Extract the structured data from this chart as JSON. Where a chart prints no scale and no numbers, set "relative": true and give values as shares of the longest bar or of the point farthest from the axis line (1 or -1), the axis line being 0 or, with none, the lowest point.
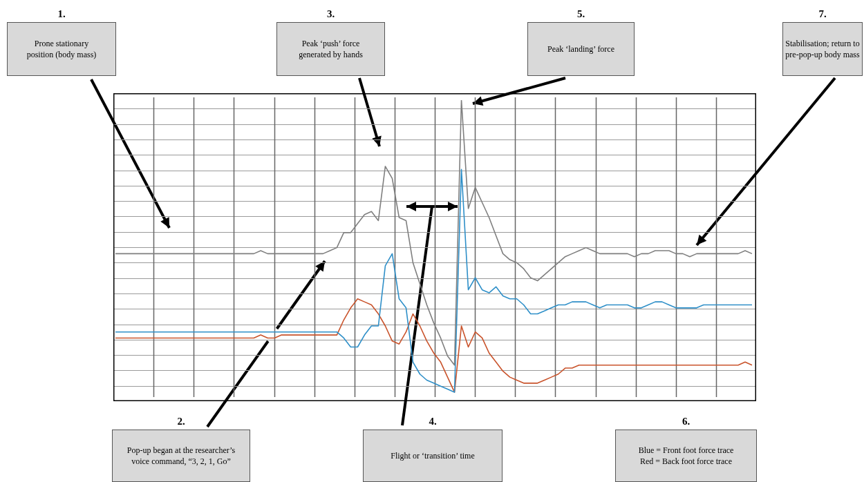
{
  "chart_data": {
    "type": "line",
    "relative": true,
    "grid": true,
    "legend": false,
    "marker": "none",
    "line_style": "solid",
    "categories": [
      null,
      null,
      null,
      null,
      null,
      null,
      null,
      null,
      null,
      null,
      null,
      null,
      null,
      null,
      null,
      null,
      null,
      null,
      null,
      null,
      null,
      null,
      null,
      null,
      null,
      null,
      null,
      null,
      null,
      null,
      null,
      null,
      null,
      null,
      null,
      null,
      null,
      null,
      null,
      null,
      null,
      null,
      null,
      null,
      null,
      null,
      null,
      null,
      null,
      null,
      null,
      null,
      null,
      null,
      null,
      null,
      null,
      null,
      null,
      null,
      null,
      null,
      null,
      null,
      null,
      null,
      null,
      null,
      null,
      null,
      null,
      null,
      null,
      null,
      null,
      null,
      null,
      null,
      null,
      null,
      null,
      null,
      null,
      null,
      null,
      null,
      null,
      null,
      null,
      null,
      null,
      null,
      null
    ],
    "series": [
      {
        "color": "#7f7f7f",
        "values": [
          0.49,
          0.49,
          0.49,
          0.49,
          0.49,
          0.49,
          0.49,
          0.49,
          0.49,
          0.49,
          0.49,
          0.49,
          0.49,
          0.49,
          0.49,
          0.49,
          0.49,
          0.49,
          0.49,
          0.49,
          0.49,
          0.5,
          0.49,
          0.49,
          0.49,
          0.49,
          0.49,
          0.49,
          0.49,
          0.49,
          0.49,
          0.5,
          0.51,
          0.56,
          0.56,
          0.59,
          0.62,
          0.63,
          0.6,
          0.78,
          0.74,
          0.61,
          0.6,
          0.46,
          0.39,
          0.32,
          0.26,
          0.21,
          0.15,
          0.12,
          1,
          0.64,
          0.71,
          0.66,
          0.61,
          0.55,
          0.49,
          0.47,
          0.46,
          0.44,
          0.41,
          0.4,
          0.42,
          0.44,
          0.46,
          0.48,
          0.49,
          0.5,
          0.51,
          0.5,
          0.49,
          0.49,
          0.49,
          0.49,
          0.49,
          0.48,
          0.49,
          0.49,
          0.5,
          0.5,
          0.5,
          0.49,
          0.49,
          0.48,
          0.49,
          0.49,
          0.49,
          0.49,
          0.49,
          0.49,
          0.49,
          0.5,
          0.49
        ]
      },
      {
        "color": "#2e8fc8",
        "values": [
          0.23,
          0.23,
          0.23,
          0.23,
          0.23,
          0.23,
          0.23,
          0.23,
          0.23,
          0.23,
          0.23,
          0.23,
          0.23,
          0.23,
          0.23,
          0.23,
          0.23,
          0.23,
          0.23,
          0.23,
          0.23,
          0.23,
          0.23,
          0.23,
          0.23,
          0.23,
          0.23,
          0.23,
          0.23,
          0.23,
          0.23,
          0.23,
          0.23,
          0.21,
          0.18,
          0.18,
          0.22,
          0.25,
          0.25,
          0.45,
          0.49,
          0.34,
          0.31,
          0.13,
          0.09,
          0.07,
          0.06,
          0.05,
          0.04,
          0.03,
          0.77,
          0.37,
          0.41,
          0.37,
          0.36,
          0.38,
          0.35,
          0.34,
          0.34,
          0.32,
          0.29,
          0.29,
          0.3,
          0.31,
          0.32,
          0.32,
          0.33,
          0.33,
          0.33,
          0.32,
          0.31,
          0.32,
          0.32,
          0.32,
          0.32,
          0.31,
          0.31,
          0.32,
          0.33,
          0.33,
          0.32,
          0.31,
          0.31,
          0.31,
          0.31,
          0.32,
          0.32,
          0.32,
          0.32,
          0.32,
          0.32,
          0.32,
          0.32
        ]
      },
      {
        "color": "#c9532b",
        "values": [
          0.21,
          0.21,
          0.21,
          0.21,
          0.21,
          0.21,
          0.21,
          0.21,
          0.21,
          0.21,
          0.21,
          0.21,
          0.21,
          0.21,
          0.21,
          0.21,
          0.21,
          0.21,
          0.21,
          0.21,
          0.21,
          0.22,
          0.21,
          0.21,
          0.22,
          0.22,
          0.22,
          0.22,
          0.22,
          0.22,
          0.22,
          0.22,
          0.22,
          0.27,
          0.31,
          0.34,
          0.33,
          0.32,
          0.29,
          0.25,
          0.2,
          0.19,
          0.23,
          0.29,
          0.25,
          0.2,
          0.16,
          0.13,
          0.08,
          0.03,
          0.25,
          0.18,
          0.23,
          0.21,
          0.16,
          0.13,
          0.1,
          0.08,
          0.07,
          0.06,
          0.06,
          0.06,
          0.07,
          0.08,
          0.09,
          0.11,
          0.11,
          0.12,
          0.12,
          0.12,
          0.12,
          0.12,
          0.12,
          0.12,
          0.12,
          0.12,
          0.12,
          0.12,
          0.12,
          0.12,
          0.12,
          0.12,
          0.12,
          0.12,
          0.12,
          0.12,
          0.12,
          0.12,
          0.12,
          0.12,
          0.12,
          0.13,
          0.12
        ]
      }
    ],
    "annotations": [
      "1.",
      "Prone stationary position (body mass)",
      "3.",
      "Peak ‘push’ force generated by hands",
      "5.",
      "Peak ‘landing’ force",
      "7.",
      "Stabilisation; return to pre-pop-up body mass",
      "2.",
      "Pop-up began at the researcher’s voice command, “3, 2, 1, Go”",
      "4.",
      "Flight or ‘transition’ time",
      "6.",
      "Blue = Front foot force trace",
      "Red = Back foot force trace"
    ]
  }
}
